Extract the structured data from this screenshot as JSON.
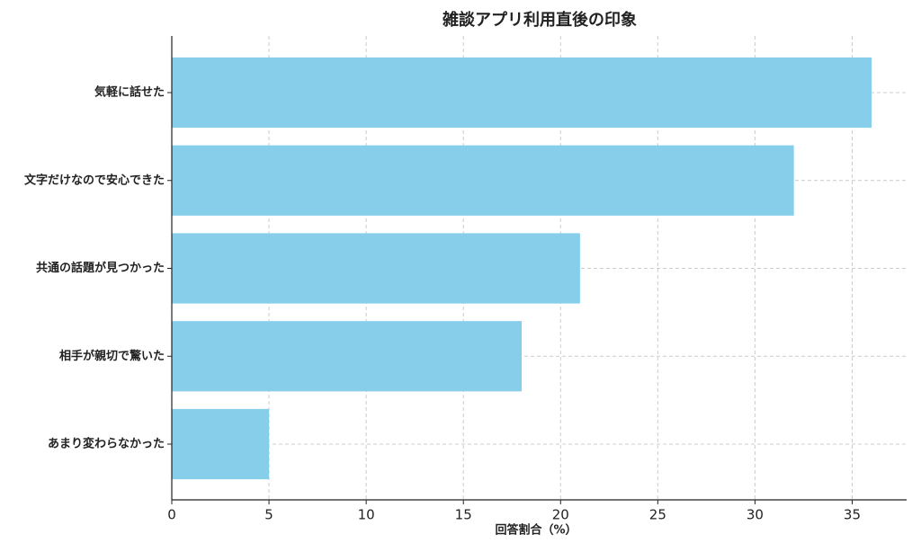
{
  "chart_data": {
    "type": "barh",
    "title": "雑談アプリ利用直後の印象",
    "categories": [
      "気軽に話せた",
      "文字だけなので安心できた",
      "共通の話題が見つかった",
      "相手が親切で驚いた",
      "あまり変わらなかった"
    ],
    "values": [
      36,
      32,
      21,
      18,
      5
    ],
    "color": "#87ceeb",
    "xlabel": "回答割合（%）",
    "xlim": [
      0,
      37.8
    ],
    "xticks": [
      0,
      5,
      10,
      15,
      20,
      25,
      30,
      35
    ],
    "grid": true
  }
}
